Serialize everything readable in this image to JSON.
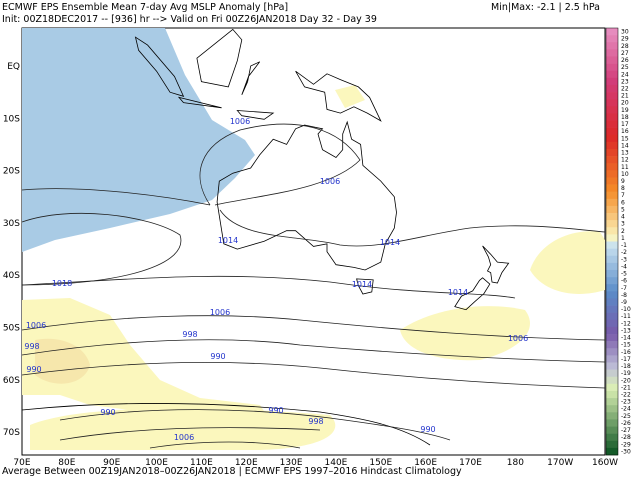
{
  "header": {
    "title": "ECMWF EPS Ensemble Mean 7-day Avg MSLP Anomaly [hPa]",
    "minmax": "Min|Max: -2.1 | 2.5 hPa",
    "init": "Init: 00Z18DEC2017 -- [936] hr --> Valid on Fri 00Z26JAN2018  Day 32 - Day 39"
  },
  "footer": "Average Between 00Z19JAN2018–00Z26JAN2018 | ECMWF EPS 1997–2016 Hindcast Climatology",
  "lat_labels": [
    "EQ",
    "10S",
    "20S",
    "30S",
    "40S",
    "50S",
    "60S",
    "70S"
  ],
  "lon_labels": [
    "70E",
    "80E",
    "90E",
    "100E",
    "110E",
    "120E",
    "130E",
    "140E",
    "150E",
    "160E",
    "170E",
    "180",
    "170W",
    "160W"
  ],
  "contour_labels": [
    1006,
    1006,
    1014,
    1014,
    1014,
    1018,
    1014,
    1006,
    1006,
    998,
    990,
    990,
    998,
    990,
    990,
    998,
    1006,
    990,
    1006
  ],
  "colorbar_labels": [
    30,
    29,
    28,
    27,
    26,
    25,
    24,
    23,
    22,
    21,
    20,
    19,
    18,
    17,
    16,
    15,
    14,
    13,
    12,
    11,
    10,
    9,
    8,
    7,
    6,
    5,
    4,
    3,
    2,
    1,
    -1,
    -2,
    -3,
    -4,
    -5,
    -6,
    -7,
    -8,
    -9,
    -10,
    -11,
    -12,
    -13,
    -14,
    -15,
    -16,
    -17,
    -18,
    -19,
    -20,
    -21,
    -22,
    -23,
    -24,
    -25,
    -26,
    -27,
    -28,
    -29,
    -30
  ]
}
